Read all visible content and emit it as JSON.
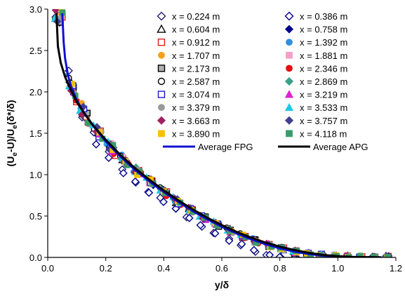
{
  "chart_data": {
    "type": "scatter",
    "title": "",
    "xlabel": "y/δ",
    "ylabel_parts": [
      "(U",
      "e",
      "-U)/U",
      "e",
      "(δ*/δ)"
    ],
    "xlim": [
      0.0,
      1.2
    ],
    "ylim": [
      0.0,
      3.0
    ],
    "x_ticks": [
      0.0,
      0.2,
      0.4,
      0.6,
      0.8,
      1.0,
      1.2
    ],
    "x_tick_labels": [
      "0.0",
      "0.2",
      "0.4",
      "0.6",
      "0.8",
      "1.0",
      "1.2"
    ],
    "y_ticks": [
      0.0,
      0.5,
      1.0,
      1.5,
      2.0,
      2.5,
      3.0
    ],
    "y_tick_labels": [
      "0.0",
      "0.5",
      "1.0",
      "1.5",
      "2.0",
      "2.5",
      "3.0"
    ],
    "grid": false,
    "legend_position": "top-right",
    "series": [
      {
        "name": "x = 0.224 m",
        "marker": "diamond",
        "color": "#1f1f7a",
        "filled": false
      },
      {
        "name": "x = 0.386 m",
        "marker": "diamond",
        "color": "#00008b",
        "filled": false
      },
      {
        "name": "x = 0.604 m",
        "marker": "triangle",
        "color": "#000000",
        "filled": false
      },
      {
        "name": "x = 0.758 m",
        "marker": "diamond",
        "color": "#00008b",
        "filled": true
      },
      {
        "name": "x = 0.912 m",
        "marker": "square",
        "color": "#e02020",
        "filled": false
      },
      {
        "name": "x = 1.392 m",
        "marker": "circle",
        "color": "#2e8fe0",
        "filled": true
      },
      {
        "name": "x = 1.707 m",
        "marker": "circle",
        "color": "#f5a020",
        "filled": true
      },
      {
        "name": "x = 1.881 m",
        "marker": "square",
        "color": "#f5a0c8",
        "filled": true
      },
      {
        "name": "x = 2.173 m",
        "marker": "square",
        "color": "#000000",
        "filled": false,
        "fill": "#b0b0b0"
      },
      {
        "name": "x = 2.346 m",
        "marker": "circle",
        "color": "#e01010",
        "filled": true
      },
      {
        "name": "x = 2.587 m",
        "marker": "circle",
        "color": "#000000",
        "filled": false
      },
      {
        "name": "x = 2.869 m",
        "marker": "diamond",
        "color": "#3aa08a",
        "filled": true
      },
      {
        "name": "x = 3.074 m",
        "marker": "square",
        "color": "#1a1ad0",
        "filled": false
      },
      {
        "name": "x = 3.219 m",
        "marker": "triangle",
        "color": "#e020d0",
        "filled": true
      },
      {
        "name": "x = 3.379 m",
        "marker": "circle",
        "color": "#999999",
        "filled": true
      },
      {
        "name": "x = 3.533 m",
        "marker": "triangle",
        "color": "#20c8e8",
        "filled": true
      },
      {
        "name": "x = 3.663 m",
        "marker": "diamond",
        "color": "#a02060",
        "filled": true
      },
      {
        "name": "x = 3.757 m",
        "marker": "diamond",
        "color": "#404090",
        "filled": true
      },
      {
        "name": "x = 3.890 m",
        "marker": "square",
        "color": "#f5c000",
        "filled": true
      },
      {
        "name": "x = 4.118 m",
        "marker": "square",
        "color": "#3a9a6a",
        "filled": true
      }
    ],
    "lines": [
      {
        "name": "Average FPG",
        "color": "#1010d0"
      },
      {
        "name": "Average APG",
        "color": "#000000"
      }
    ],
    "average_fpg": {
      "x": [
        0.05,
        0.055,
        0.06,
        0.07,
        0.08,
        0.1,
        0.12,
        0.15,
        0.2,
        0.25,
        0.3,
        0.35,
        0.4,
        0.45,
        0.5,
        0.55,
        0.6,
        0.65,
        0.7,
        0.75,
        0.8,
        0.85,
        0.9,
        0.95,
        1.0,
        1.05,
        1.1,
        1.15
      ],
      "y": [
        2.95,
        2.6,
        2.4,
        2.2,
        2.07,
        1.9,
        1.78,
        1.62,
        1.4,
        1.22,
        1.06,
        0.92,
        0.79,
        0.67,
        0.56,
        0.46,
        0.37,
        0.29,
        0.22,
        0.16,
        0.11,
        0.07,
        0.04,
        0.02,
        0.01,
        0.004,
        0.002,
        0.001
      ]
    },
    "average_apg": {
      "x": [
        0.03,
        0.035,
        0.045,
        0.06,
        0.08,
        0.1,
        0.13,
        0.16,
        0.2,
        0.25,
        0.3,
        0.35,
        0.4,
        0.45,
        0.5,
        0.55,
        0.6,
        0.65,
        0.7,
        0.75,
        0.8,
        0.85,
        0.9,
        0.95,
        1.0,
        1.05,
        1.1,
        1.15
      ],
      "y": [
        2.95,
        2.55,
        2.35,
        2.18,
        2.02,
        1.88,
        1.72,
        1.58,
        1.42,
        1.24,
        1.08,
        0.94,
        0.81,
        0.69,
        0.58,
        0.48,
        0.39,
        0.31,
        0.24,
        0.18,
        0.13,
        0.09,
        0.055,
        0.03,
        0.015,
        0.007,
        0.003,
        0.001
      ]
    }
  }
}
